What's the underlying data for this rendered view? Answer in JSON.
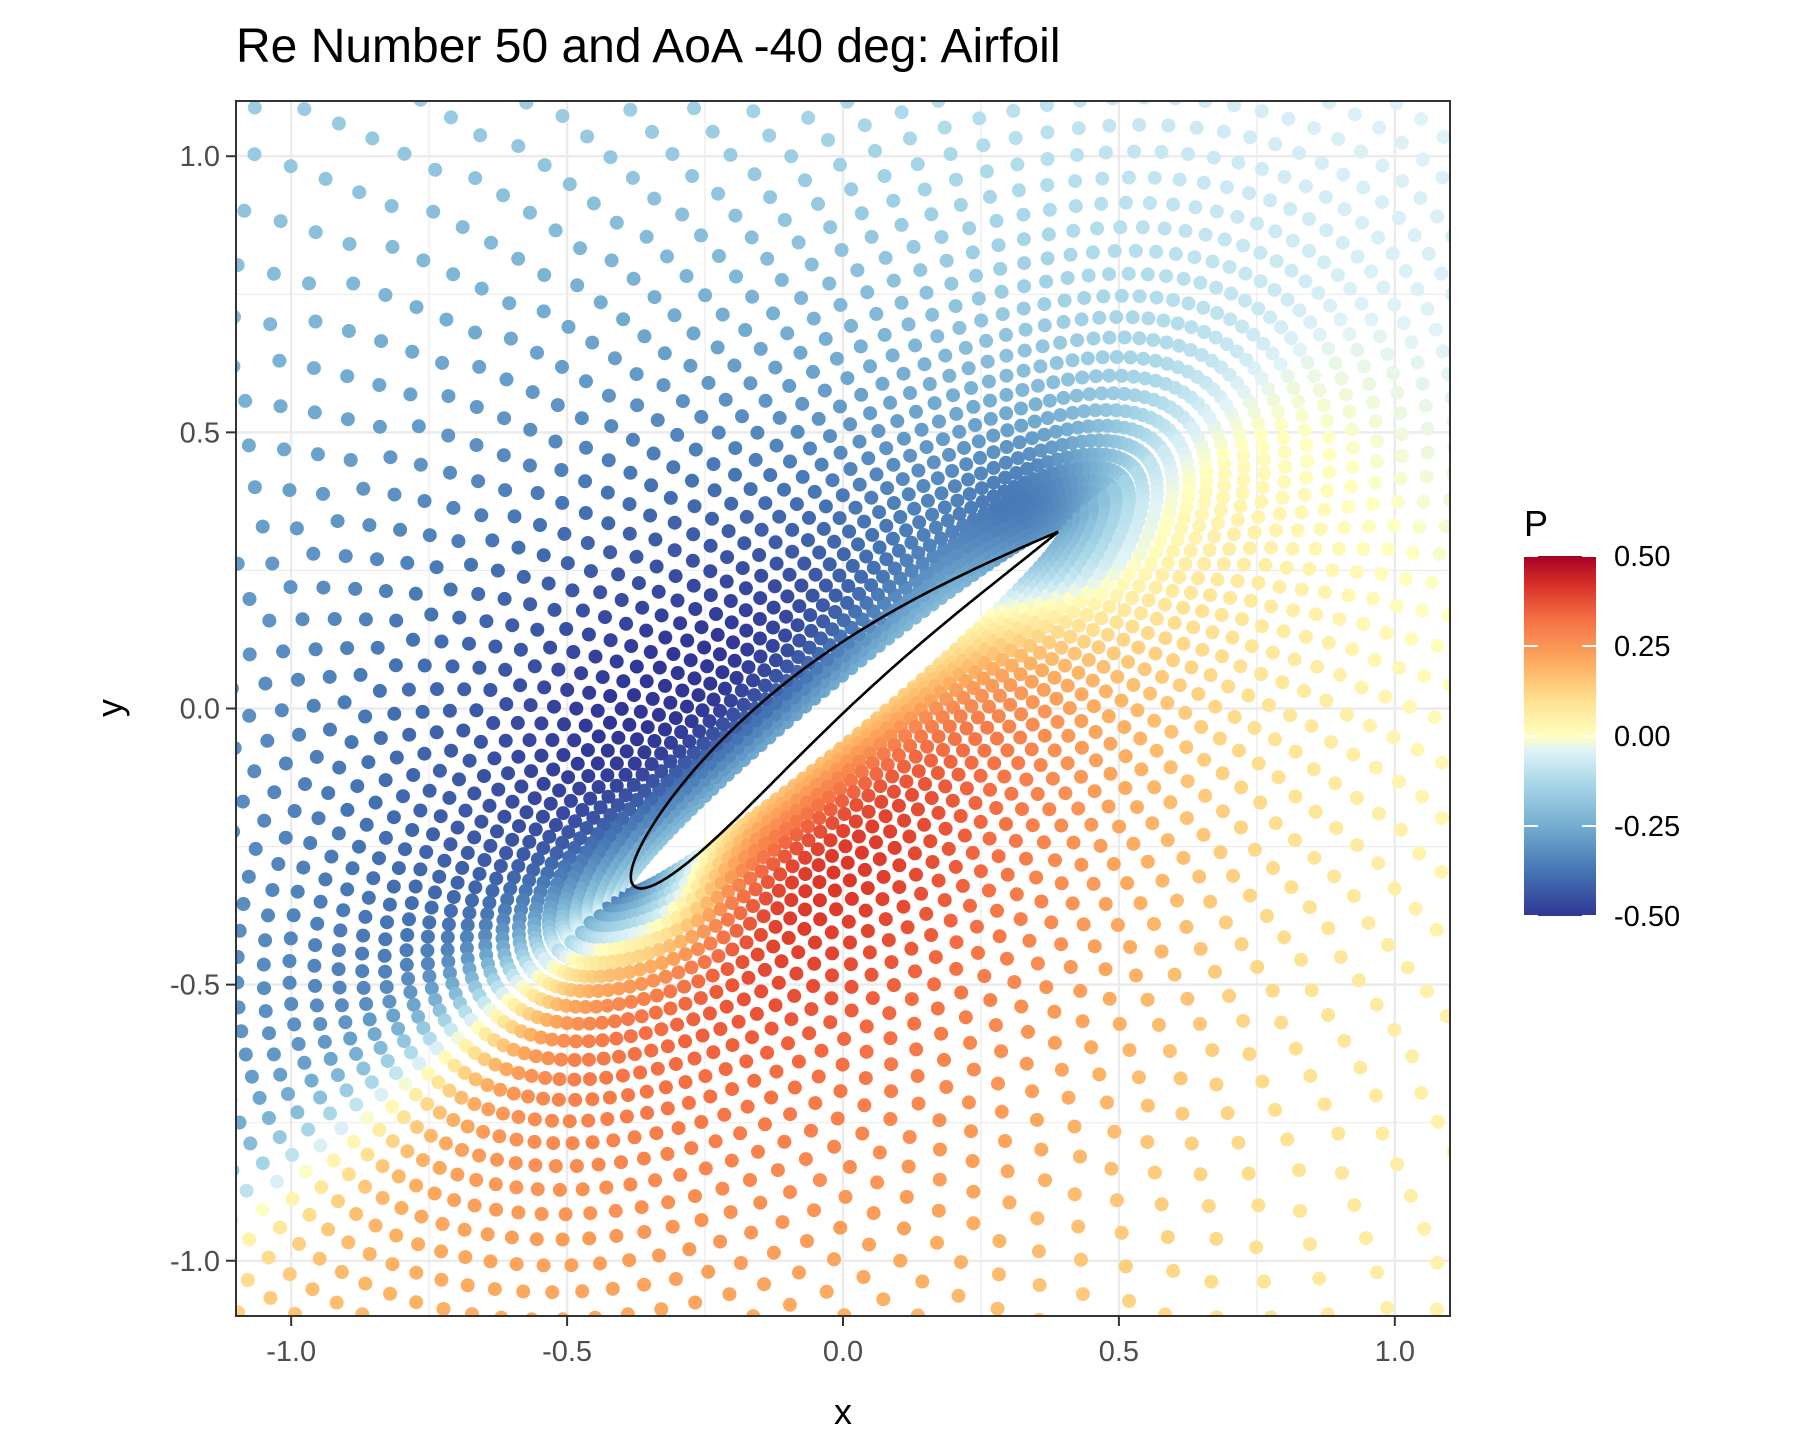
{
  "chart_data": {
    "type": "scatter",
    "title": "Re Number 50 and AoA -40 deg: Airfoil",
    "xlabel": "x",
    "ylabel": "y",
    "xlim": [
      -1.1,
      1.1
    ],
    "ylim": [
      -1.1,
      1.1
    ],
    "x_ticks": [
      -1.0,
      -0.5,
      0.0,
      0.5,
      1.0
    ],
    "y_ticks": [
      -1.0,
      -0.5,
      0.0,
      0.5,
      1.0
    ],
    "x_tick_labels": [
      "-1.0",
      "-0.5",
      "0.0",
      "0.5",
      "1.0"
    ],
    "y_tick_labels": [
      "-1.0",
      "-0.5",
      "0.0",
      "0.5",
      "1.0"
    ],
    "grid": true,
    "theme": "bw",
    "color_variable": "P",
    "color_scale": {
      "name": "P",
      "palette": "RdYlBu reversed",
      "limits": [
        -0.5,
        0.5
      ],
      "breaks": [
        0.5,
        0.25,
        0.0,
        -0.25,
        -0.5
      ],
      "break_labels": [
        "0.50",
        "0.25",
        "0.00",
        "-0.25",
        "-0.50"
      ],
      "stops": [
        {
          "value": -0.5,
          "color": "#313695"
        },
        {
          "value": -0.375,
          "color": "#4575b4"
        },
        {
          "value": -0.25,
          "color": "#74add1"
        },
        {
          "value": -0.125,
          "color": "#abd9e9"
        },
        {
          "value": -0.04,
          "color": "#e0f3f8"
        },
        {
          "value": 0.0,
          "color": "#ffffbf"
        },
        {
          "value": 0.1,
          "color": "#fee090"
        },
        {
          "value": 0.2,
          "color": "#fdae61"
        },
        {
          "value": 0.33,
          "color": "#f46d43"
        },
        {
          "value": 0.42,
          "color": "#d73027"
        },
        {
          "value": 0.5,
          "color": "#a50026"
        }
      ],
      "legend_position": "right"
    },
    "airfoil": {
      "angle_of_attack_deg": -40,
      "reynolds_number": 50,
      "leading_edge": [
        -0.38,
        -0.32
      ],
      "trailing_edge": [
        0.39,
        0.32
      ],
      "outline_color": "#000000"
    },
    "mesh_points": "dense O-grid of points around the airfoil colored by pressure P; positive pressure (red/orange) on the lower-left windward side, negative pressure (blue) on the right/lower suction side and near the trailing edge"
  }
}
